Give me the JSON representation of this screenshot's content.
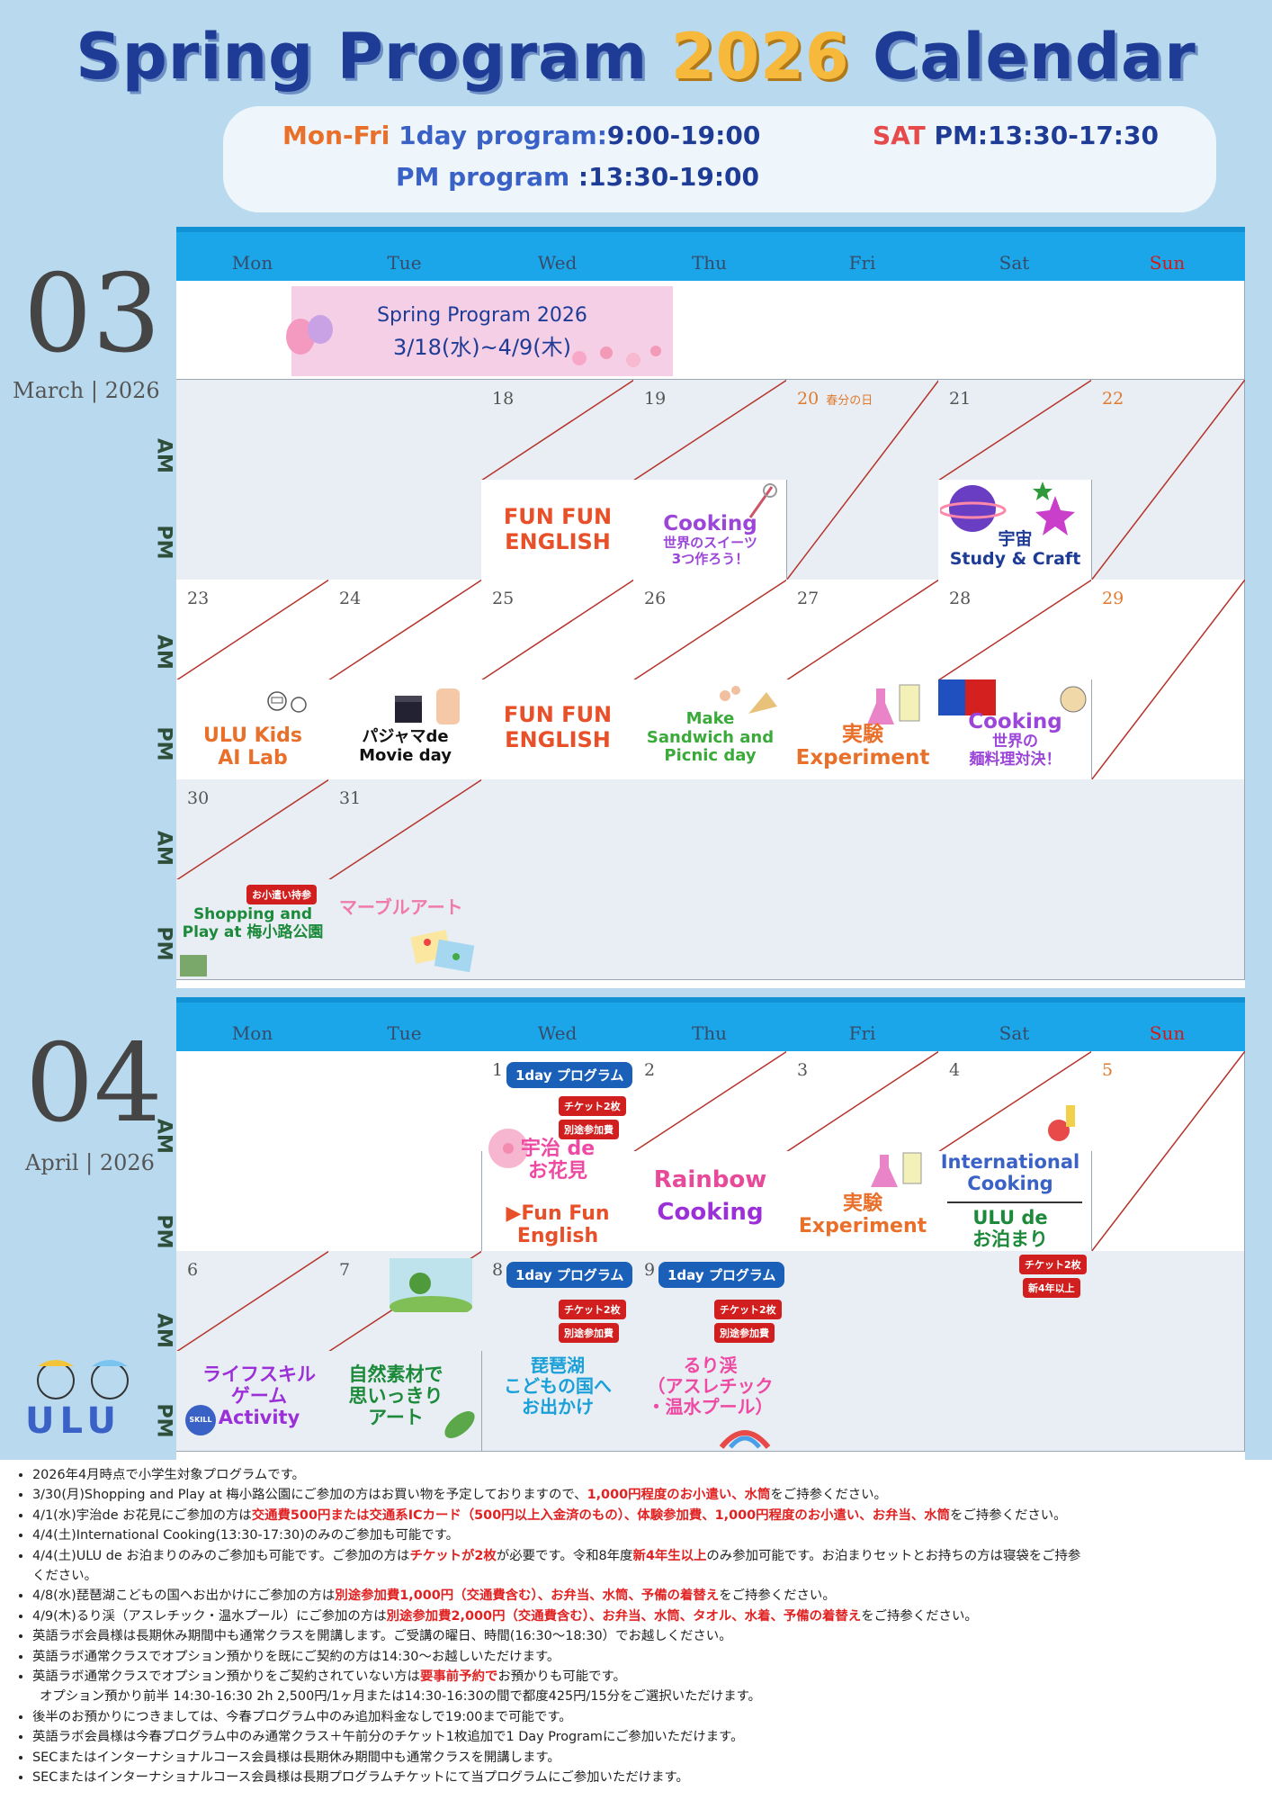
{
  "title": {
    "part1": "Spring Program",
    "year": "2026",
    "part2": "Calendar"
  },
  "hours": {
    "monfri": "Mon-Fri",
    "oneday": "1day program:",
    "oneday_time": "9:00-19:00",
    "pm": "PM program",
    "pm_time": ":13:30-19:00",
    "sat": "SAT",
    "sat_time": "PM:13:30-17:30"
  },
  "labels": {
    "am": "AM",
    "pm": "PM"
  },
  "weekdays": [
    "Mon",
    "Tue",
    "Wed",
    "Thu",
    "Fri",
    "Sat",
    "Sun"
  ],
  "march": {
    "num": "03",
    "name": "March | 2026",
    "banner": {
      "line1": "Spring Program 2026",
      "line2": "3/18(水)~4/9(木)"
    },
    "dates": {
      "d18": "18",
      "d19": "19",
      "d20": "20",
      "d20h": "春分の日",
      "d21": "21",
      "d22": "22",
      "d23": "23",
      "d24": "24",
      "d25": "25",
      "d26": "26",
      "d27": "27",
      "d28": "28",
      "d29": "29",
      "d30": "30",
      "d31": "31"
    },
    "act": {
      "wed18_1": "FUN FUN",
      "wed18_2": "ENGLISH",
      "thu19_1": "Cooking",
      "thu19_2": "世界のスイーツ",
      "thu19_3": "3つ作ろう！",
      "sat21_1": "宇宙",
      "sat21_2": "Study & Craft",
      "mon23_1": "ULU Kids",
      "mon23_2": "AI Lab",
      "tue24_1": "パジャマde",
      "tue24_2": "Movie day",
      "wed25_1": "FUN FUN",
      "wed25_2": "ENGLISH",
      "thu26_1": "Make",
      "thu26_2": "Sandwich and",
      "thu26_3": "Picnic day",
      "fri27_1": "実験",
      "fri27_2": "Experiment",
      "sat28_1": "Cooking",
      "sat28_2": "世界の",
      "sat28_3": "麺料理対決！",
      "mon30_badge": "お小遣い持参",
      "mon30_1": "Shopping and",
      "mon30_2": "Play at 梅小路公園",
      "tue31_1": "マーブルアート"
    }
  },
  "april": {
    "num": "04",
    "name": "April | 2026",
    "dates": {
      "d1": "1",
      "d2": "2",
      "d3": "3",
      "d4": "4",
      "d5": "5",
      "d6": "6",
      "d7": "7",
      "d8": "8",
      "d9": "9"
    },
    "act": {
      "pill": "1day プログラム",
      "ticket": "チケット2枚",
      "extra": "別途参加費",
      "wed1_1": "宇治 de",
      "wed1_2": "お花見",
      "wed1_3": "▶Fun Fun",
      "wed1_4": "English",
      "thu2_1": "Rainbow",
      "thu2_2": "Cooking",
      "fri3_1": "実験",
      "fri3_2": "Experiment",
      "sat4_1": "International",
      "sat4_2": "Cooking",
      "sat4_3": "ULU de",
      "sat4_4": "お泊まり",
      "sat4_b1": "チケット2枚",
      "sat4_b2": "新4年以上",
      "mon6_1": "ライフスキル",
      "mon6_2": "ゲーム",
      "mon6_3": "Activity",
      "mon6_skill": "SKILL",
      "tue7_1": "自然素材で",
      "tue7_2": "思いっきり",
      "tue7_3": "アート",
      "wed8_1": "琵琶湖",
      "wed8_2": "こどもの国へ",
      "wed8_3": "お出かけ",
      "thu9_1": "るり渓",
      "thu9_2": "（アスレチック",
      "thu9_3": "・温水プール）"
    }
  },
  "logo": "ULU",
  "notes": [
    [
      "2026年4月時点で小学生対象プログラムです。"
    ],
    [
      "3/30(月)Shopping and Play at 梅小路公園にご参加の方はお買い物を予定しておりますので、",
      "1,000円程度のお小遣い、水筒",
      "をご持参ください。"
    ],
    [
      "4/1(水)宇治de お花見にご参加の方は",
      "交通費500円または交通系ICカード（500円以上入金済のもの）、体験参加費、1,000円程度のお小遣い、お弁当、水筒",
      "をご持参ください。"
    ],
    [
      "4/4(土)International Cooking(13:30-17:30)のみのご参加も可能です。"
    ],
    [
      "4/4(土)ULU de お泊まりのみのご参加も可能です。ご参加の方は",
      "チケットが2枚",
      "が必要です。令和8年度",
      "新4年生以上",
      "のみ参加可能です。お泊まりセットとお持ちの方は寝袋をご持参"
    ],
    [
      "ください。"
    ],
    [
      "4/8(水)琵琶湖こどもの国へお出かけにご参加の方は",
      "別途参加費1,000円（交通費含む）、お弁当、水筒、予備の着替え",
      "をご持参ください。"
    ],
    [
      "4/9(木)るり渓（アスレチック・温水プール）にご参加の方は",
      "別途参加費2,000円（交通費含む）、お弁当、水筒、タオル、水着、予備の着替え",
      "をご持参ください。"
    ],
    [
      "英語ラボ会員様は長期休み期間中も通常クラスを開講します。ご受講の曜日、時間(16:30〜18:30）でお越しください。"
    ],
    [
      "英語ラボ通常クラスでオプション預かりを既にご契約の方は14:30〜お越しいただけます。"
    ],
    [
      "英語ラボ通常クラスでオプション預かりをご契約されていない方は",
      "要事前予約で",
      "お預かりも可能です。"
    ],
    [
      "オプション預かり前半  14:30-16:30 2h 2,500円/1ヶ月または14:30-16:30の間で都度425円/15分をご選択いただけます。"
    ],
    [
      "後半のお預かりにつきましては、今春プログラム中のみ追加料金なしで19:00まで可能です。"
    ],
    [
      "英語ラボ会員様は今春プログラム中のみ通常クラス＋午前分のチケット1枚追加で1 Day Programにご参加いただけます。"
    ],
    [
      "SECまたはインターナショナルコース会員様は長期休み期間中も通常クラスを開講します。"
    ],
    [
      "SECまたはインターナショナルコース会員様は長期プログラムチケットにて当プログラムにご参加いただけます。"
    ]
  ]
}
